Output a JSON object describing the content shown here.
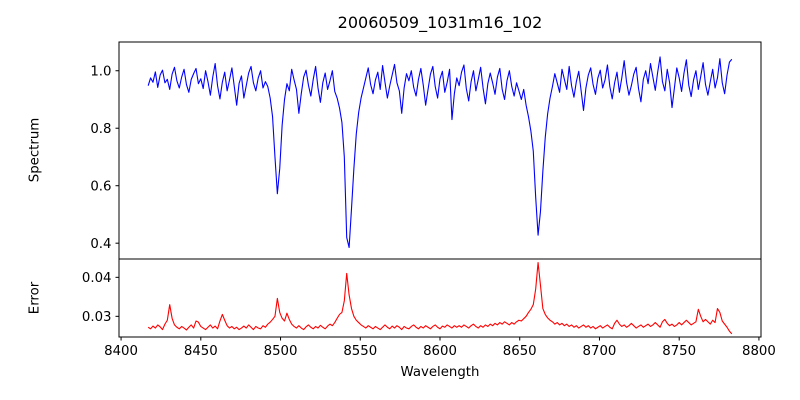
{
  "figure": {
    "title": "20060509_1031m16_102",
    "xlabel": "Wavelength"
  },
  "chart_data": [
    {
      "type": "line",
      "title": "20060509_1031m16_102",
      "ylabel": "Spectrum",
      "series_name": "spectrum",
      "color": "#0000ff",
      "x_start": 8417,
      "x_step": 1.5,
      "xlim": [
        8398.7,
        8801.3
      ],
      "ylim": [
        0.345,
        1.1
      ],
      "yticks": [
        0.4,
        0.6,
        0.8,
        1.0
      ],
      "ytick_labels": [
        "0.4",
        "0.6",
        "0.8",
        "1.0"
      ],
      "grid": false,
      "legend": "none",
      "absorption_lines": [
        {
          "wavelength": 8498,
          "min_value": 0.57
        },
        {
          "wavelength": 8542,
          "min_value": 0.38
        },
        {
          "wavelength": 8662,
          "min_value": 0.43
        }
      ],
      "values_scale": 0.001,
      "values": [
        948,
        975,
        960,
        996,
        942,
        985,
        1002,
        958,
        970,
        935,
        988,
        1012,
        965,
        940,
        978,
        1005,
        952,
        925,
        970,
        990,
        1008,
        955,
        972,
        938,
        1000,
        962,
        915,
        978,
        1025,
        948,
        902,
        960,
        995,
        930,
        968,
        1010,
        945,
        880,
        956,
        982,
        905,
        948,
        992,
        1015,
        958,
        930,
        975,
        1000,
        940,
        962,
        945,
        905,
        840,
        700,
        572,
        660,
        810,
        900,
        955,
        930,
        1005,
        968,
        935,
        852,
        920,
        978,
        1002,
        950,
        912,
        970,
        1015,
        940,
        890,
        958,
        992,
        935,
        965,
        1000,
        928,
        905,
        870,
        820,
        700,
        420,
        385,
        520,
        660,
        780,
        855,
        905,
        940,
        975,
        1010,
        952,
        920,
        968,
        995,
        935,
        1018,
        960,
        905,
        948,
        985,
        1022,
        958,
        930,
        852,
        940,
        990,
        965,
        1000,
        942,
        912,
        970,
        1008,
        950,
        880,
        935,
        988,
        1015,
        945,
        905,
        972,
        998,
        925,
        960,
        1005,
        830,
        920,
        975,
        948,
        995,
        1020,
        938,
        895,
        962,
        1000,
        930,
        970,
        1012,
        940,
        885,
        955,
        992,
        958,
        918,
        978,
        1008,
        935,
        900,
        965,
        1000,
        945,
        912,
        958,
        930,
        900,
        935,
        880,
        840,
        790,
        720,
        560,
        428,
        510,
        650,
        768,
        850,
        905,
        945,
        990,
        958,
        925,
        1005,
        970,
        935,
        1015,
        948,
        908,
        962,
        998,
        930,
        862,
        940,
        985,
        1010,
        952,
        918,
        975,
        1002,
        940,
        968,
        1020,
        945,
        902,
        958,
        995,
        925,
        975,
        1035,
        960,
        915,
        948,
        988,
        1012,
        938,
        892,
        970,
        1000,
        955,
        1025,
        978,
        932,
        995,
        1048,
        962,
        930,
        1005,
        958,
        872,
        940,
        1010,
        975,
        928,
        992,
        1038,
        950,
        910,
        968,
        1000,
        935,
        980,
        1028,
        952,
        915,
        962,
        1005,
        940,
        975,
        1042,
        958,
        920,
        985,
        1030,
        1040
      ]
    },
    {
      "type": "line",
      "ylabel": "Error",
      "xlabel": "Wavelength",
      "series_name": "error",
      "color": "#ff0000",
      "x_start": 8417,
      "x_step": 1.5,
      "xlim": [
        8398.7,
        8801.3
      ],
      "ylim": [
        0.0247,
        0.0447
      ],
      "yticks": [
        0.03,
        0.04
      ],
      "ytick_labels": [
        "0.03",
        "0.04"
      ],
      "xticks": [
        8400,
        8450,
        8500,
        8550,
        8600,
        8650,
        8700,
        8750,
        8800
      ],
      "xtick_labels": [
        "8400",
        "8450",
        "8500",
        "8550",
        "8600",
        "8650",
        "8700",
        "8750",
        "8800"
      ],
      "grid": false,
      "legend": "none",
      "error_peaks": [
        {
          "wavelength": 8430,
          "value": 0.033
        },
        {
          "wavelength": 8464,
          "value": 0.0305
        },
        {
          "wavelength": 8498,
          "value": 0.0346
        },
        {
          "wavelength": 8542,
          "value": 0.041
        },
        {
          "wavelength": 8662,
          "value": 0.0438
        },
        {
          "wavelength": 8774,
          "value": 0.032
        }
      ],
      "values_scale": 0.0001,
      "values": [
        272,
        268,
        275,
        270,
        278,
        273,
        266,
        280,
        290,
        330,
        295,
        278,
        272,
        268,
        274,
        270,
        265,
        272,
        278,
        270,
        288,
        285,
        274,
        270,
        266,
        272,
        278,
        270,
        275,
        268,
        288,
        305,
        290,
        276,
        270,
        274,
        268,
        272,
        266,
        270,
        275,
        270,
        278,
        272,
        266,
        274,
        270,
        268,
        276,
        272,
        280,
        285,
        292,
        300,
        346,
        310,
        295,
        288,
        308,
        292,
        280,
        274,
        270,
        276,
        270,
        266,
        273,
        278,
        272,
        268,
        274,
        270,
        277,
        272,
        268,
        275,
        280,
        276,
        284,
        295,
        305,
        310,
        340,
        410,
        355,
        320,
        300,
        290,
        284,
        278,
        274,
        270,
        276,
        272,
        268,
        274,
        270,
        266,
        272,
        278,
        272,
        268,
        275,
        270,
        276,
        272,
        266,
        274,
        270,
        268,
        274,
        278,
        272,
        268,
        274,
        270,
        276,
        272,
        268,
        274,
        278,
        272,
        268,
        275,
        272,
        278,
        274,
        270,
        276,
        272,
        276,
        272,
        278,
        274,
        270,
        276,
        280,
        274,
        270,
        276,
        272,
        278,
        274,
        280,
        276,
        282,
        278,
        284,
        280,
        286,
        282,
        278,
        284,
        280,
        286,
        290,
        288,
        294,
        300,
        310,
        318,
        330,
        370,
        438,
        380,
        320,
        305,
        296,
        290,
        286,
        280,
        284,
        278,
        282,
        276,
        280,
        274,
        278,
        272,
        276,
        270,
        274,
        278,
        272,
        276,
        270,
        274,
        268,
        272,
        276,
        270,
        274,
        278,
        272,
        268,
        282,
        290,
        280,
        274,
        278,
        272,
        276,
        282,
        276,
        270,
        274,
        278,
        272,
        276,
        280,
        274,
        278,
        284,
        278,
        272,
        286,
        292,
        282,
        276,
        280,
        274,
        278,
        284,
        278,
        284,
        290,
        284,
        278,
        282,
        286,
        318,
        300,
        286,
        292,
        286,
        280,
        290,
        284,
        320,
        310,
        288,
        280,
        272,
        262,
        255
      ]
    }
  ]
}
